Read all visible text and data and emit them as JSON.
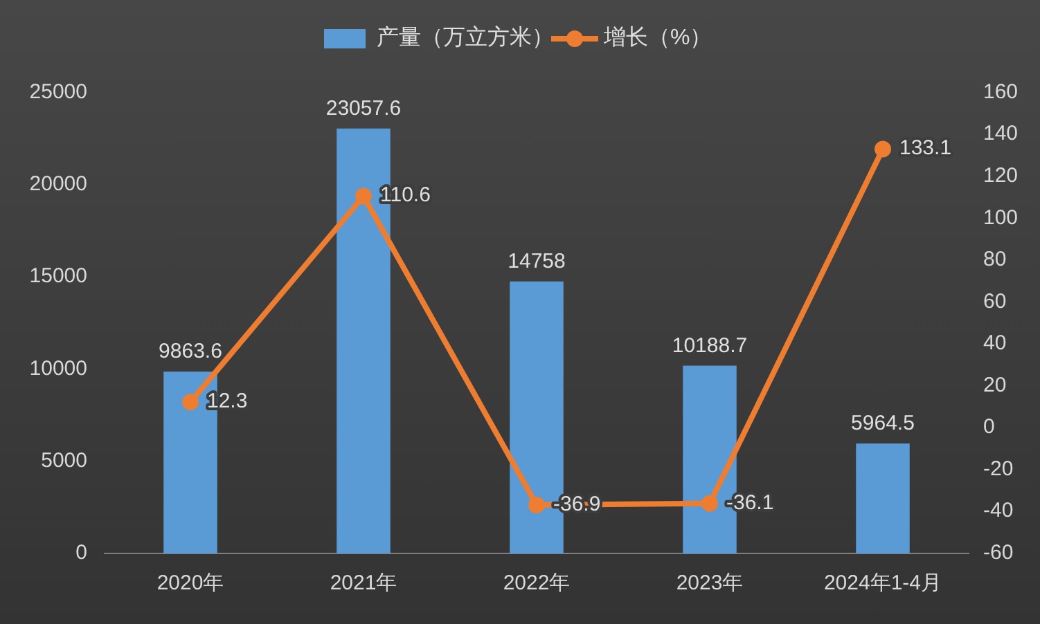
{
  "chart_data": {
    "type": "bar",
    "categories": [
      "2020年",
      "2021年",
      "2022年",
      "2023年",
      "2024年1-4月"
    ],
    "series": [
      {
        "name": "产量（万立方米）",
        "color": "#5b9bd5",
        "values": [
          9863.6,
          23057.6,
          14758,
          10188.7,
          5964.5
        ]
      },
      {
        "name": "增长（%）",
        "type": "line",
        "axis": "y2",
        "color": "#ed7d31",
        "values": [
          12.3,
          110.6,
          -36.9,
          -36.1,
          133.1
        ]
      }
    ],
    "ylim": [
      0,
      25000
    ],
    "yticks": [
      0,
      5000,
      10000,
      15000,
      20000,
      25000
    ],
    "y2lim": [
      -60,
      160
    ],
    "y2ticks": [
      -60,
      -40,
      -20,
      0,
      20,
      40,
      60,
      80,
      100,
      120,
      140,
      160
    ],
    "data_labels": true,
    "legend": "top",
    "marker": "circle",
    "line_style": "solid",
    "grid": false
  }
}
